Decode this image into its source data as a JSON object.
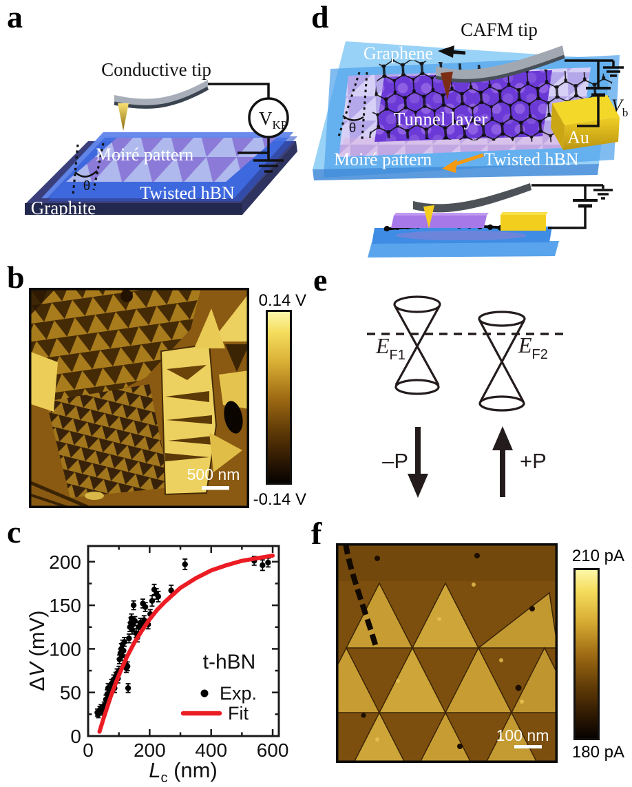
{
  "panels": {
    "a": {
      "label": "a",
      "tip_label": "Conductive tip",
      "meter_label": "V",
      "meter_sub": "KP",
      "moire_label": "Moiré pattern",
      "hbn_label": "Twisted hBN",
      "graphite_label": "Graphite",
      "angle_label": "θ"
    },
    "b": {
      "label": "b",
      "scalebar_label": "500 nm",
      "colorbar_top": "0.14 V",
      "colorbar_bottom": "-0.14 V"
    },
    "c": {
      "label": "c"
    },
    "d": {
      "label": "d",
      "tip_label": "CAFM tip",
      "graphene_label": "Graphene",
      "tunnel_label": "Tunnel layer",
      "moire_label": "Moiré pattern",
      "hbn_label": "Twisted hBN",
      "au_label": "Au",
      "bias_label": "V",
      "bias_sub": "b",
      "angle_label": "θ"
    },
    "e": {
      "label": "e",
      "ef1_main": "E",
      "ef1_sub": "F1",
      "ef2_main": "E",
      "ef2_sub": "F2",
      "neg_p": "–P",
      "pos_p": "+P"
    },
    "f": {
      "label": "f",
      "scalebar_label": "100 nm",
      "colorbar_top": "210 pA",
      "colorbar_bottom": "180 pA"
    }
  },
  "colors": {
    "fit_red": "#ec1c24",
    "afm_gold_bright": "#f0d468",
    "afm_brown_bg": "#8a5a12",
    "afm_dark": "#1a0d00",
    "colorbar_stops": [
      "#fdf7a8",
      "#f5dd5e",
      "#d8ae34",
      "#a06c14",
      "#5f3a06",
      "#2a1602",
      "#060300"
    ],
    "hbn_blue": "#3f6ce2",
    "sky_blue": "#7cc6f4",
    "tunnel_purple": "#6b3ad6",
    "gold": "#f2d22a",
    "graphite_navy": "#3a3f7c",
    "moire_light": "#b2bcee",
    "moire_purple": "#8d7bd8",
    "orange_arrow": "#f59a10"
  },
  "chart_data": {
    "type": "scatter",
    "title": "",
    "xlabel": "L_c (nm)",
    "ylabel": "ΔV (mV)",
    "xlabel_parts": {
      "var": "L",
      "sub": "c",
      "unit": " (nm)"
    },
    "ylabel_parts": {
      "delta": "Δ",
      "var": "V",
      "unit": " (mV)"
    },
    "xlim": [
      0,
      620
    ],
    "ylim": [
      0,
      218
    ],
    "x_ticks": [
      0,
      200,
      400,
      600
    ],
    "x_minor_ticks": [
      100,
      300,
      500
    ],
    "y_ticks": [
      0,
      50,
      100,
      150,
      200
    ],
    "y_minor_ticks": [
      25,
      75,
      125,
      175
    ],
    "grid": false,
    "legend": {
      "title": "t-hBN",
      "position": "lower right",
      "entries": [
        {
          "label": "Exp.",
          "marker": "dot",
          "color": "#000000"
        },
        {
          "label": "Fit",
          "marker": "line",
          "color": "#ec1c24"
        }
      ]
    },
    "series": [
      {
        "name": "Exp.",
        "type": "scatter",
        "color": "#000000",
        "error_bars": true,
        "points": [
          [
            30,
            27,
            4
          ],
          [
            33,
            25,
            4
          ],
          [
            38,
            30,
            4
          ],
          [
            42,
            32,
            4
          ],
          [
            46,
            28,
            4
          ],
          [
            52,
            35,
            4
          ],
          [
            58,
            42,
            5
          ],
          [
            62,
            48,
            5
          ],
          [
            65,
            55,
            5
          ],
          [
            68,
            45,
            4
          ],
          [
            72,
            52,
            5
          ],
          [
            76,
            60,
            5
          ],
          [
            80,
            58,
            5
          ],
          [
            83,
            65,
            5
          ],
          [
            86,
            55,
            5
          ],
          [
            90,
            68,
            5
          ],
          [
            94,
            72,
            5
          ],
          [
            97,
            66,
            5
          ],
          [
            100,
            75,
            5
          ],
          [
            102,
            88,
            5
          ],
          [
            105,
            95,
            5
          ],
          [
            108,
            100,
            6
          ],
          [
            110,
            92,
            5
          ],
          [
            112,
            105,
            5
          ],
          [
            115,
            98,
            5
          ],
          [
            118,
            108,
            5
          ],
          [
            120,
            85,
            5
          ],
          [
            124,
            78,
            5
          ],
          [
            128,
            80,
            5
          ],
          [
            130,
            55,
            5
          ],
          [
            133,
            112,
            5
          ],
          [
            136,
            125,
            5
          ],
          [
            139,
            130,
            6
          ],
          [
            141,
            135,
            5
          ],
          [
            143,
            122,
            5
          ],
          [
            146,
            128,
            5
          ],
          [
            148,
            150,
            5
          ],
          [
            152,
            132,
            5
          ],
          [
            156,
            118,
            5
          ],
          [
            160,
            113,
            5
          ],
          [
            164,
            125,
            5
          ],
          [
            170,
            130,
            5
          ],
          [
            175,
            127,
            5
          ],
          [
            178,
            152,
            5
          ],
          [
            182,
            133,
            5
          ],
          [
            186,
            148,
            5
          ],
          [
            195,
            128,
            5
          ],
          [
            202,
            140,
            5
          ],
          [
            208,
            155,
            6
          ],
          [
            215,
            168,
            6
          ],
          [
            222,
            163,
            6
          ],
          [
            228,
            160,
            6
          ],
          [
            270,
            167,
            6
          ],
          [
            315,
            197,
            6
          ],
          [
            540,
            201,
            5
          ],
          [
            567,
            196,
            6
          ],
          [
            585,
            199,
            5
          ]
        ]
      },
      {
        "name": "Fit",
        "type": "line",
        "color": "#ec1c24",
        "points": [
          [
            37,
            5
          ],
          [
            50,
            20
          ],
          [
            75,
            47
          ],
          [
            100,
            70
          ],
          [
            125,
            90
          ],
          [
            150,
            107
          ],
          [
            175,
            121
          ],
          [
            200,
            134
          ],
          [
            225,
            145
          ],
          [
            250,
            154
          ],
          [
            300,
            170
          ],
          [
            350,
            181
          ],
          [
            400,
            190
          ],
          [
            450,
            196
          ],
          [
            500,
            201
          ],
          [
            550,
            204
          ],
          [
            600,
            207
          ]
        ]
      }
    ]
  }
}
